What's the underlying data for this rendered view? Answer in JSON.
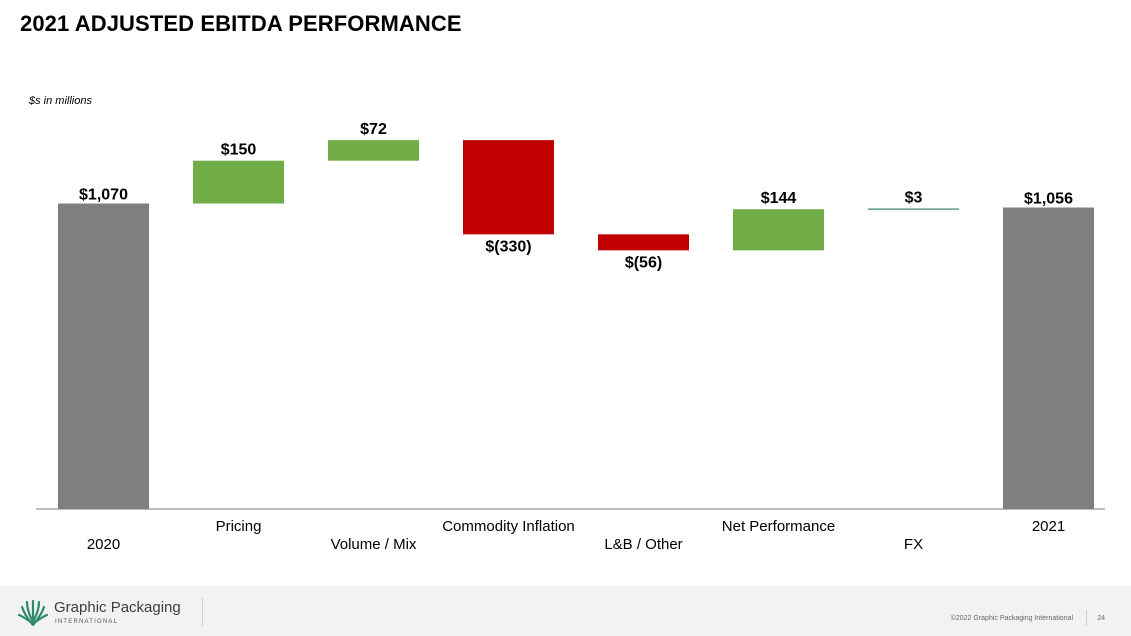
{
  "slide": {
    "title": "2021 ADJUSTED EBITDA PERFORMANCE",
    "units_note": "$s in millions"
  },
  "chart_data": {
    "type": "bar",
    "subtype": "waterfall",
    "categories": [
      "2020",
      "Pricing",
      "Volume / Mix",
      "Commodity Inflation",
      "L&B / Other",
      "Net Performance",
      "FX",
      "2021"
    ],
    "values": [
      1070,
      150,
      72,
      -330,
      -56,
      144,
      3,
      1056
    ],
    "kinds": [
      "total",
      "delta",
      "delta",
      "delta",
      "delta",
      "delta",
      "delta",
      "total"
    ],
    "data_labels": [
      "$1,070",
      "$150",
      "$72",
      "$(330)",
      "$(56)",
      "$144",
      "$3",
      "$1,056"
    ],
    "ylim": [
      0,
      1400
    ],
    "grid": false,
    "legend": "none",
    "colors": {
      "total": "#7f7f7f",
      "increase": "#70ad47",
      "decrease": "#c00000",
      "fx": "#5b9a8f",
      "axis": "#a6a6a6"
    }
  },
  "footer": {
    "brand_name": "Graphic Packaging",
    "brand_sub": "INTERNATIONAL",
    "logo_icon": "leaf-logo-icon",
    "copyright": "©2022 Graphic Packaging International",
    "page_number": "24"
  }
}
